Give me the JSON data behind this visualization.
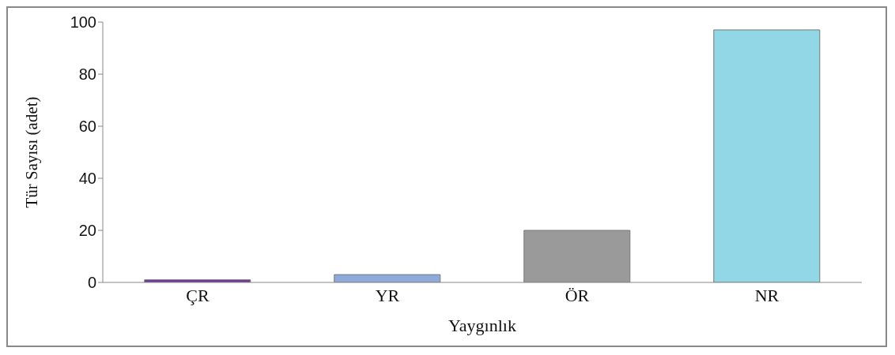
{
  "chart_data": {
    "type": "bar",
    "xlabel": "Yaygınlık",
    "ylabel": "Tür Sayısı (adet)",
    "categories": [
      "ÇR",
      "YR",
      "ÖR",
      "NR"
    ],
    "values": [
      1,
      3,
      20,
      97
    ],
    "colors": [
      "#7030a0",
      "#8eaadb",
      "#9a9a9a",
      "#92d7e6"
    ],
    "ylim": [
      0,
      100
    ],
    "yticks": [
      0,
      20,
      40,
      60,
      80,
      100
    ],
    "grid": false
  }
}
